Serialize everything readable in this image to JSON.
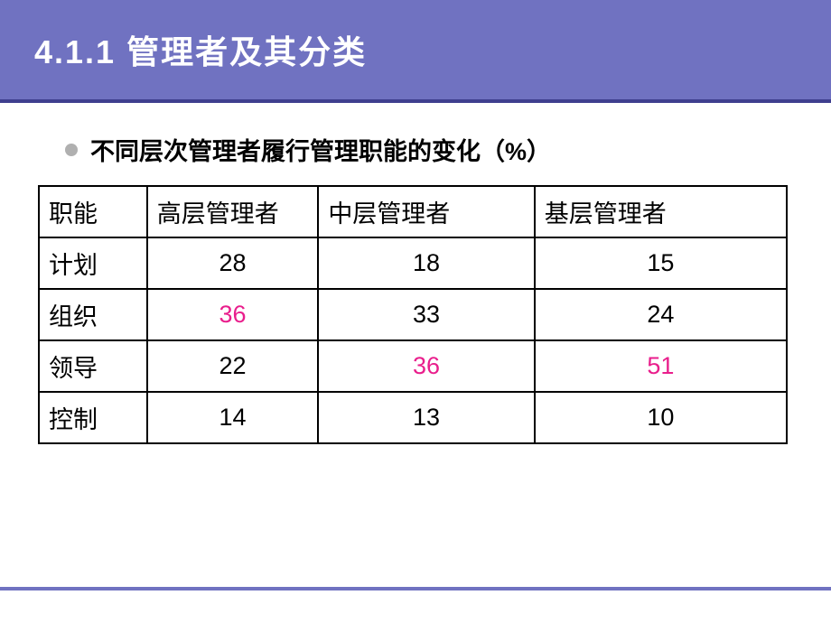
{
  "header": {
    "title": "4.1.1  管理者及其分类"
  },
  "bullet": {
    "text": "不同层次管理者履行管理职能的变化（%）"
  },
  "table": {
    "columns": [
      "职能",
      "高层管理者",
      "中层管理者",
      "基层管理者"
    ],
    "rows": [
      {
        "label": "计划",
        "values": [
          "28",
          "18",
          "15"
        ],
        "highlight": [
          false,
          false,
          false
        ]
      },
      {
        "label": "组织",
        "values": [
          "36",
          "33",
          "24"
        ],
        "highlight": [
          true,
          false,
          false
        ]
      },
      {
        "label": "领导",
        "values": [
          "22",
          "36",
          "51"
        ],
        "highlight": [
          false,
          true,
          true
        ]
      },
      {
        "label": "控制",
        "values": [
          "14",
          "13",
          "10"
        ],
        "highlight": [
          false,
          false,
          false
        ]
      }
    ]
  },
  "colors": {
    "header_band": "#7072c1",
    "divider": "#3f3f8f",
    "highlight": "#e91e8c",
    "bullet": "#b0b0b0",
    "text": "#000000",
    "background": "#ffffff"
  }
}
